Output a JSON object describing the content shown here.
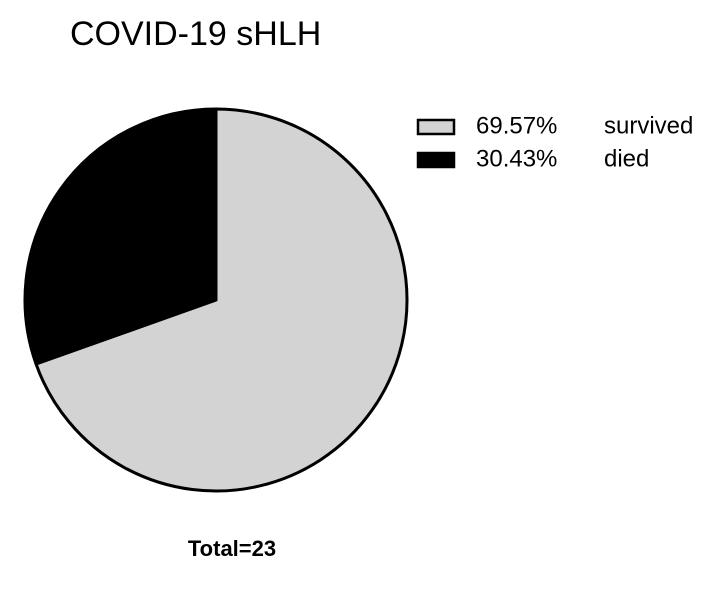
{
  "chart_data": {
    "type": "pie",
    "title": "COVID-19 sHLH",
    "categories": [
      "survived",
      "died"
    ],
    "values": [
      69.57,
      30.43
    ],
    "value_labels": [
      "69.57%",
      "30.43%"
    ],
    "colors": [
      "#d3d3d3",
      "#000000"
    ],
    "annotation": "Total=23",
    "legend": "top-right"
  }
}
